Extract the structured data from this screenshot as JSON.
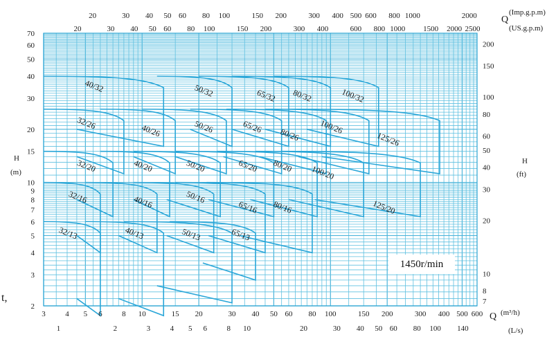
{
  "chart_data": {
    "type": "line",
    "title": "",
    "speed_label": "1450r/min",
    "colors": {
      "grid": "#5fc0e0",
      "curves": "#29a6d8",
      "text": "#1a1a1a"
    },
    "axes": {
      "x_bottom_primary": {
        "unit": "(m³/h)",
        "symbol": "Q",
        "scale": "log",
        "range": [
          3,
          600
        ],
        "ticks": [
          "3",
          "4",
          "5",
          "6",
          "8",
          "10",
          "15",
          "20",
          "30",
          "40",
          "50",
          "60",
          "80",
          "100",
          "150",
          "200",
          "300",
          "400",
          "500",
          "600"
        ]
      },
      "x_bottom_secondary": {
        "unit": "(L/s)",
        "scale": "log",
        "ticks": [
          "1",
          "2",
          "3",
          "4",
          "5",
          "6",
          "8",
          "10",
          "20",
          "30",
          "40",
          "50",
          "60",
          "80",
          "100",
          "140"
        ]
      },
      "x_top_primary": {
        "unit": "(Imp.g.p.m)",
        "symbol": "Q",
        "scale": "log",
        "ticks": [
          "20",
          "30",
          "40",
          "50",
          "60",
          "80",
          "100",
          "150",
          "200",
          "300",
          "400",
          "500",
          "600",
          "800",
          "1000",
          "2000"
        ]
      },
      "x_top_secondary": {
        "unit": "(US.g.p.m)",
        "scale": "log",
        "ticks": [
          "20",
          "30",
          "40",
          "50",
          "60",
          "80",
          "100",
          "150",
          "200",
          "300",
          "400",
          "600",
          "800",
          "1000",
          "1500",
          "2000",
          "2500"
        ]
      },
      "y_left": {
        "unit": "(m)",
        "symbol": "H",
        "scale": "log",
        "range": [
          2,
          70
        ],
        "ticks": [
          "2",
          "3",
          "4",
          "5",
          "6",
          "7",
          "8",
          "9",
          "10",
          "15",
          "20",
          "30",
          "40",
          "50",
          "60",
          "70"
        ]
      },
      "y_right": {
        "unit": "(ft)",
        "symbol": "H",
        "scale": "log",
        "ticks": [
          "7",
          "8",
          "10",
          "20",
          "30",
          "40",
          "50",
          "60",
          "80",
          "100",
          "150",
          "200"
        ]
      }
    },
    "grid": true,
    "series": [
      {
        "name": "40/32",
        "qmin": 3,
        "qmax": 13,
        "hmax": 40,
        "hmin": 20,
        "label_q": 5.5,
        "label_h": 34
      },
      {
        "name": "50/32",
        "qmin": 12,
        "qmax": 30,
        "hmax": 40,
        "hmin": 20,
        "label_q": 21,
        "label_h": 32
      },
      {
        "name": "65/32",
        "qmin": 20,
        "qmax": 60,
        "hmax": 40,
        "hmin": 20,
        "label_q": 45,
        "label_h": 30
      },
      {
        "name": "80/32",
        "qmin": 30,
        "qmax": 100,
        "hmax": 40,
        "hmin": 20,
        "label_q": 70,
        "label_h": 30
      },
      {
        "name": "100/32",
        "qmin": 50,
        "qmax": 180,
        "hmax": 40,
        "hmin": 20,
        "label_q": 130,
        "label_h": 30
      },
      {
        "name": "32/26",
        "qmin": 3,
        "qmax": 8,
        "hmax": 26,
        "hmin": 14,
        "label_q": 5,
        "label_h": 21
      },
      {
        "name": "40/26",
        "qmin": 6,
        "qmax": 15,
        "hmax": 26,
        "hmin": 14,
        "label_q": 11,
        "label_h": 19
      },
      {
        "name": "50/26",
        "qmin": 10,
        "qmax": 28,
        "hmax": 26,
        "hmin": 14,
        "label_q": 21,
        "label_h": 20
      },
      {
        "name": "65/26",
        "qmin": 18,
        "qmax": 55,
        "hmax": 26,
        "hmin": 14,
        "label_q": 38,
        "label_h": 20
      },
      {
        "name": "80/26",
        "qmin": 28,
        "qmax": 95,
        "hmax": 26,
        "hmin": 14,
        "label_q": 60,
        "label_h": 18
      },
      {
        "name": "100/26",
        "qmin": 45,
        "qmax": 160,
        "hmax": 26,
        "hmin": 14,
        "label_q": 100,
        "label_h": 20
      },
      {
        "name": "125/26",
        "qmin": 60,
        "qmax": 380,
        "hmax": 26,
        "hmin": 14,
        "label_q": 200,
        "label_h": 17
      },
      {
        "name": "32/20",
        "qmin": 3,
        "qmax": 7,
        "hmax": 15,
        "hmin": 8,
        "label_q": 5,
        "label_h": 12
      },
      {
        "name": "40/20",
        "qmin": 6,
        "qmax": 14,
        "hmax": 15,
        "hmin": 8,
        "label_q": 10,
        "label_h": 12
      },
      {
        "name": "50/20",
        "qmin": 9,
        "qmax": 26,
        "hmax": 15,
        "hmin": 8,
        "label_q": 19,
        "label_h": 12
      },
      {
        "name": "65/20",
        "qmin": 15,
        "qmax": 50,
        "hmax": 15,
        "hmin": 8,
        "label_q": 36,
        "label_h": 12
      },
      {
        "name": "80/20",
        "qmin": 25,
        "qmax": 85,
        "hmax": 15,
        "hmin": 8,
        "label_q": 55,
        "label_h": 12
      },
      {
        "name": "100/20",
        "qmin": 40,
        "qmax": 150,
        "hmax": 15,
        "hmin": 8,
        "label_q": 90,
        "label_h": 11
      },
      {
        "name": "125/20",
        "qmin": 55,
        "qmax": 300,
        "hmax": 15,
        "hmin": 8,
        "label_q": 190,
        "label_h": 7
      },
      {
        "name": "32/16",
        "qmin": 3,
        "qmax": 6,
        "hmax": 10,
        "hmin": 5,
        "label_q": 4.5,
        "label_h": 8
      },
      {
        "name": "40/16",
        "qmin": 5,
        "qmax": 12,
        "hmax": 10,
        "hmin": 5,
        "label_q": 10,
        "label_h": 7.5
      },
      {
        "name": "50/16",
        "qmin": 9,
        "qmax": 24,
        "hmax": 10,
        "hmin": 5,
        "label_q": 19,
        "label_h": 8
      },
      {
        "name": "65/16",
        "qmin": 15,
        "qmax": 45,
        "hmax": 10,
        "hmin": 5,
        "label_q": 36,
        "label_h": 7
      },
      {
        "name": "80/16",
        "qmin": 22,
        "qmax": 80,
        "hmax": 10,
        "hmin": 5,
        "label_q": 55,
        "label_h": 7
      },
      {
        "name": "32/13",
        "qmin": 3,
        "qmax": 6,
        "hmax": 6,
        "hmin": 2.2,
        "label_q": 4,
        "label_h": 5
      },
      {
        "name": "40/13",
        "qmin": 5,
        "qmax": 13,
        "hmax": 6,
        "hmin": 2.2,
        "label_q": 9,
        "label_h": 5
      },
      {
        "name": "50/13",
        "qmin": 8,
        "qmax": 30,
        "hmax": 6,
        "hmin": 2.6,
        "label_q": 18,
        "label_h": 4.9
      },
      {
        "name": "65/13",
        "qmin": 14,
        "qmax": 40,
        "hmax": 6,
        "hmin": 3.5,
        "label_q": 33,
        "label_h": 4.9
      }
    ]
  },
  "page": {
    "side_text": "t,"
  }
}
